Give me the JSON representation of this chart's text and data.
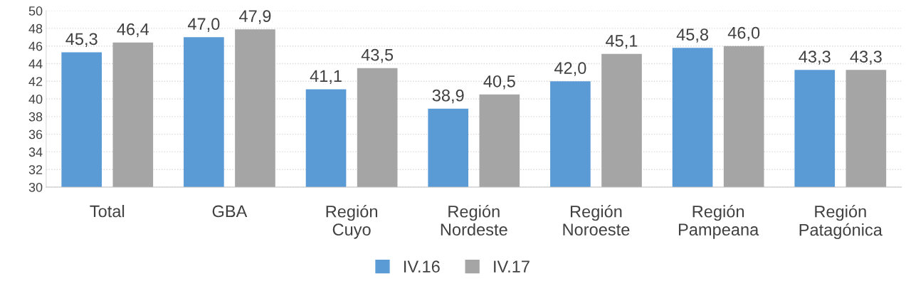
{
  "chart_data": {
    "type": "bar",
    "categories": [
      "Total",
      "GBA",
      "Región\nCuyo",
      "Región\nNordeste",
      "Región\nNoroeste",
      "Región\nPampeana",
      "Región\nPatagónica"
    ],
    "series": [
      {
        "name": "IV.16",
        "color": "#5b9bd5",
        "values": [
          45.3,
          47.0,
          41.1,
          38.9,
          42.0,
          45.8,
          43.3
        ],
        "value_labels": [
          "45,3",
          "47,0",
          "41,1",
          "38,9",
          "42,0",
          "45,8",
          "43,3"
        ]
      },
      {
        "name": "IV.17",
        "color": "#a5a5a5",
        "values": [
          46.4,
          47.9,
          43.5,
          40.5,
          45.1,
          46.0,
          43.3
        ],
        "value_labels": [
          "46,4",
          "47,9",
          "43,5",
          "40,5",
          "45,1",
          "46,0",
          "43,3"
        ]
      }
    ],
    "ylim": [
      30,
      50
    ],
    "yticks": [
      30,
      32,
      34,
      36,
      38,
      40,
      42,
      44,
      46,
      48,
      50
    ],
    "grid": "y",
    "legend": "bottom"
  }
}
